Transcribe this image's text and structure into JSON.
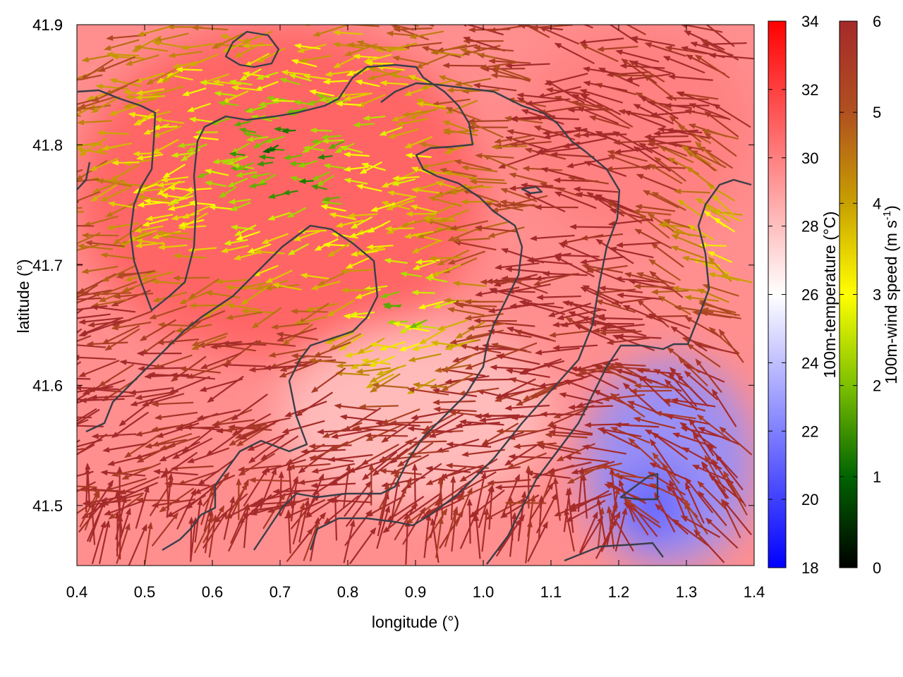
{
  "chart_data": {
    "type": "heatmap",
    "subtype": "temperature field with wind vectors and terrain contours",
    "xlabel": "longitude (°)",
    "ylabel": "latitude (°)",
    "xlim": [
      0.4,
      1.4
    ],
    "ylim": [
      41.45,
      41.9
    ],
    "x_ticks": [
      "0.4",
      "0.5",
      "0.6",
      "0.7",
      "0.8",
      "0.9",
      "1.0",
      "1.1",
      "1.2",
      "1.3",
      "1.4"
    ],
    "y_ticks": [
      "41.5",
      "41.6",
      "41.7",
      "41.8",
      "41.9"
    ],
    "temperature_colorbar": {
      "label": "100m-temperature (°C)",
      "range": [
        18,
        34
      ],
      "ticks": [
        "18",
        "20",
        "22",
        "24",
        "26",
        "28",
        "30",
        "32",
        "34"
      ],
      "colors": [
        "#0000ff",
        "#ffffff",
        "#ff0000"
      ]
    },
    "wind_colorbar": {
      "label_main": "100m-wind speed (m s",
      "label_sup": "-1",
      "label_end": ")",
      "range": [
        0,
        6
      ],
      "ticks": [
        "0",
        "1",
        "2",
        "3",
        "4",
        "5",
        "6"
      ],
      "colors": [
        "#000000",
        "#006400",
        "#7cc000",
        "#ffff00",
        "#c8a000",
        "#b05020",
        "#a52a2a"
      ]
    },
    "temperature_field_regions": [
      {
        "name": "warm north-west",
        "lon": [
          0.4,
          1.0
        ],
        "lat": [
          41.62,
          41.9
        ],
        "temperature": 31
      },
      {
        "name": "mild center",
        "lon": [
          0.7,
          1.1
        ],
        "lat": [
          41.5,
          41.65
        ],
        "temperature": 28
      },
      {
        "name": "warm north-east",
        "lon": [
          1.05,
          1.4
        ],
        "lat": [
          41.72,
          41.9
        ],
        "temperature": 30
      },
      {
        "name": "cool south-east",
        "lon": [
          1.15,
          1.4
        ],
        "lat": [
          41.45,
          41.62
        ],
        "temperature": 22.5
      },
      {
        "name": "cold pocket",
        "lon": [
          1.2,
          1.3
        ],
        "lat": [
          41.47,
          41.53
        ],
        "temperature": 21
      }
    ]
  }
}
